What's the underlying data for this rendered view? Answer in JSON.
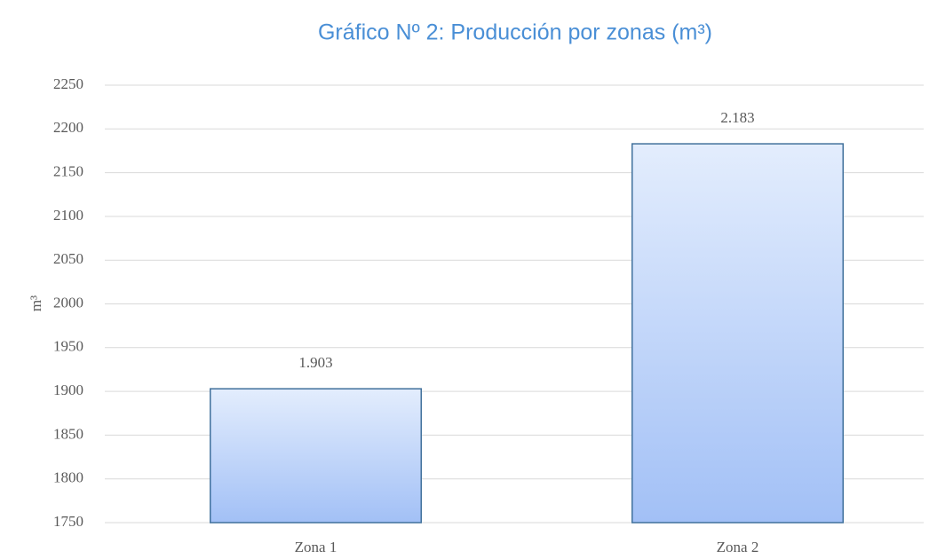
{
  "chart_data": {
    "type": "bar",
    "title": "Gráfico Nº 2: Producción por zonas (m³)",
    "ylabel": "m³",
    "categories": [
      "Zona 1",
      "Zona 2"
    ],
    "values": [
      1903,
      2183
    ],
    "value_labels": [
      "1.903",
      "2.183"
    ],
    "color": "#a2c0f6",
    "edge_color": "#41719c",
    "ylim": [
      1750,
      2250
    ],
    "yticks": [
      1750,
      1800,
      1850,
      1900,
      1950,
      2000,
      2050,
      2100,
      2150,
      2200,
      2250
    ],
    "grid": true
  }
}
